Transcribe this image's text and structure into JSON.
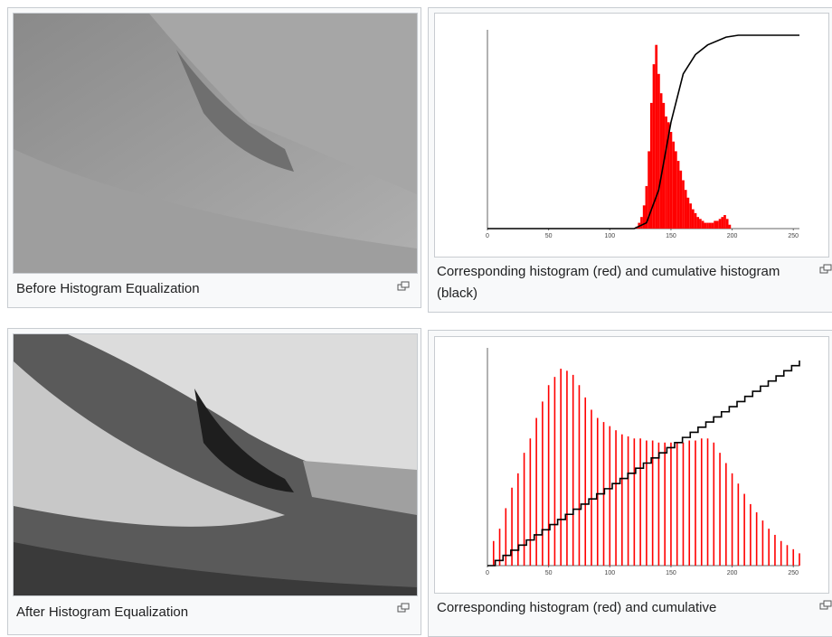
{
  "panels": [
    {
      "caption": "Before Histogram Equalization"
    },
    {
      "caption": "Corresponding histogram (red) and cumulative histogram (black)",
      "chart_data": {
        "type": "histogram",
        "color": "#ff0000",
        "x": [
          120,
          122,
          124,
          126,
          128,
          130,
          132,
          134,
          136,
          138,
          140,
          142,
          144,
          146,
          148,
          150,
          152,
          154,
          156,
          158,
          160,
          162,
          164,
          166,
          168,
          170,
          172,
          174,
          176,
          178,
          180,
          182,
          184,
          186,
          188,
          190,
          192,
          194,
          196,
          198,
          200
        ],
        "values": [
          0,
          1,
          3,
          6,
          12,
          22,
          40,
          65,
          85,
          95,
          80,
          70,
          65,
          58,
          55,
          50,
          45,
          40,
          35,
          30,
          25,
          20,
          16,
          13,
          10,
          8,
          6,
          5,
          4,
          3,
          3,
          3,
          3,
          4,
          4,
          5,
          6,
          7,
          5,
          2,
          0
        ],
        "cumulative": {
          "color": "#000000",
          "x": [
            0,
            120,
            130,
            140,
            150,
            160,
            170,
            180,
            195,
            205,
            255
          ],
          "values": [
            0,
            0,
            3,
            20,
            55,
            80,
            90,
            95,
            99,
            100,
            100
          ]
        },
        "xlim": [
          0,
          255
        ],
        "ylim": [
          0,
          100
        ],
        "xticks": [
          0,
          50,
          100,
          150,
          200,
          250
        ]
      }
    },
    {
      "caption": "After Histogram Equalization"
    },
    {
      "caption": "Corresponding histogram (red) and cumulative",
      "chart_data": {
        "type": "spikes",
        "color": "#ff0000",
        "x": [
          5,
          10,
          15,
          20,
          25,
          30,
          35,
          40,
          45,
          50,
          55,
          60,
          65,
          70,
          75,
          80,
          85,
          90,
          95,
          100,
          105,
          110,
          115,
          120,
          125,
          130,
          135,
          140,
          145,
          150,
          155,
          160,
          165,
          170,
          175,
          180,
          185,
          190,
          195,
          200,
          205,
          210,
          215,
          220,
          225,
          230,
          235,
          240,
          245,
          250,
          255
        ],
        "values": [
          12,
          18,
          28,
          38,
          45,
          55,
          62,
          72,
          80,
          88,
          92,
          96,
          95,
          93,
          88,
          82,
          76,
          72,
          70,
          68,
          66,
          64,
          63,
          62,
          62,
          61,
          61,
          60,
          60,
          60,
          60,
          60,
          61,
          61,
          62,
          62,
          60,
          55,
          50,
          45,
          40,
          35,
          30,
          26,
          22,
          18,
          15,
          12,
          10,
          8,
          6
        ],
        "cumulative": {
          "color": "#000000",
          "x": [
            0,
            255
          ],
          "values": [
            0,
            100
          ]
        },
        "xlim": [
          0,
          255
        ],
        "ylim": [
          0,
          100
        ],
        "xticks": [
          0,
          50,
          100,
          150,
          200,
          250
        ]
      }
    }
  ]
}
